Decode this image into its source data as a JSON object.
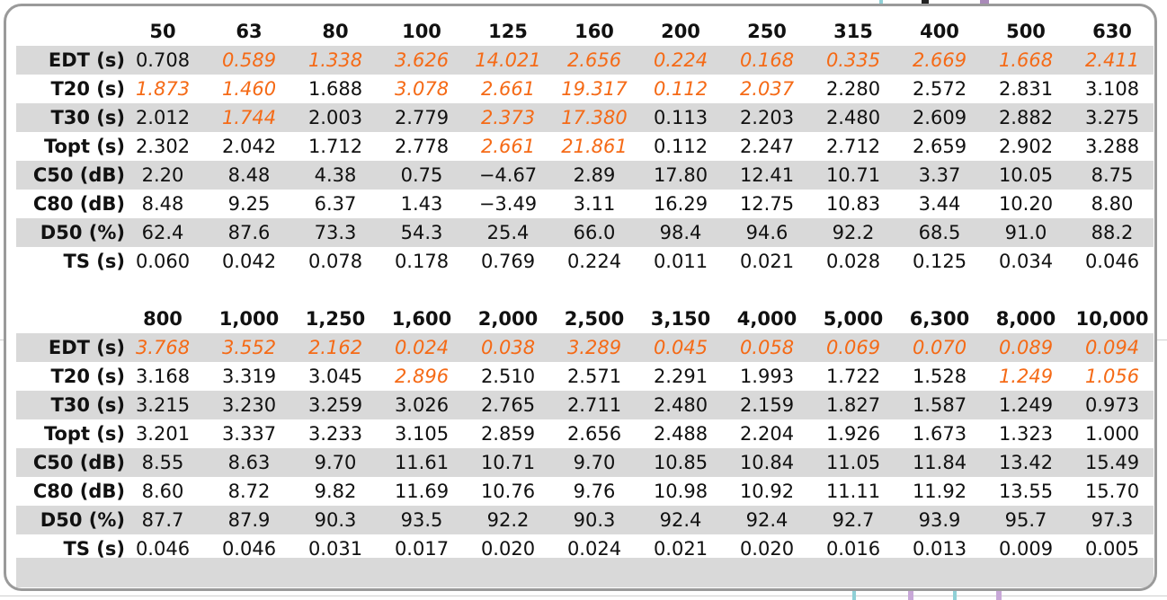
{
  "colors": {
    "highlight": "#f56a16",
    "shade": "#d9d9d9",
    "border": "#9a9a9a"
  },
  "sections": [
    {
      "headers": [
        "50",
        "63",
        "80",
        "100",
        "125",
        "160",
        "200",
        "250",
        "315",
        "400",
        "500",
        "630"
      ],
      "rows": [
        {
          "label": "EDT (s)",
          "values": [
            "0.708",
            "0.589",
            "1.338",
            "3.626",
            "14.021",
            "2.656",
            "0.224",
            "0.168",
            "0.335",
            "2.669",
            "1.668",
            "2.411"
          ],
          "highlight": [
            1,
            2,
            3,
            4,
            5,
            6,
            7,
            8,
            9,
            10,
            11
          ]
        },
        {
          "label": "T20 (s)",
          "values": [
            "1.873",
            "1.460",
            "1.688",
            "3.078",
            "2.661",
            "19.317",
            "0.112",
            "2.037",
            "2.280",
            "2.572",
            "2.831",
            "3.108"
          ],
          "highlight": [
            0,
            1,
            3,
            4,
            5,
            6,
            7
          ]
        },
        {
          "label": "T30 (s)",
          "values": [
            "2.012",
            "1.744",
            "2.003",
            "2.779",
            "2.373",
            "17.380",
            "0.113",
            "2.203",
            "2.480",
            "2.609",
            "2.882",
            "3.275"
          ],
          "highlight": [
            1,
            4,
            5
          ]
        },
        {
          "label": "Topt (s)",
          "values": [
            "2.302",
            "2.042",
            "1.712",
            "2.778",
            "2.661",
            "21.861",
            "0.112",
            "2.247",
            "2.712",
            "2.659",
            "2.902",
            "3.288"
          ],
          "highlight": [
            4,
            5
          ]
        },
        {
          "label": "C50 (dB)",
          "values": [
            "2.20",
            "8.48",
            "4.38",
            "0.75",
            "−4.67",
            "2.89",
            "17.80",
            "12.41",
            "10.71",
            "3.37",
            "10.05",
            "8.75"
          ],
          "highlight": []
        },
        {
          "label": "C80 (dB)",
          "values": [
            "8.48",
            "9.25",
            "6.37",
            "1.43",
            "−3.49",
            "3.11",
            "16.29",
            "12.75",
            "10.83",
            "3.44",
            "10.20",
            "8.80"
          ],
          "highlight": []
        },
        {
          "label": "D50 (%)",
          "values": [
            "62.4",
            "87.6",
            "73.3",
            "54.3",
            "25.4",
            "66.0",
            "98.4",
            "94.6",
            "92.2",
            "68.5",
            "91.0",
            "88.2"
          ],
          "highlight": []
        },
        {
          "label": "TS (s)",
          "values": [
            "0.060",
            "0.042",
            "0.078",
            "0.178",
            "0.769",
            "0.224",
            "0.011",
            "0.021",
            "0.028",
            "0.125",
            "0.034",
            "0.046"
          ],
          "highlight": []
        }
      ]
    },
    {
      "headers": [
        "800",
        "1,000",
        "1,250",
        "1,600",
        "2,000",
        "2,500",
        "3,150",
        "4,000",
        "5,000",
        "6,300",
        "8,000",
        "10,000"
      ],
      "rows": [
        {
          "label": "EDT (s)",
          "values": [
            "3.768",
            "3.552",
            "2.162",
            "0.024",
            "0.038",
            "3.289",
            "0.045",
            "0.058",
            "0.069",
            "0.070",
            "0.089",
            "0.094"
          ],
          "highlight": [
            0,
            1,
            2,
            3,
            4,
            5,
            6,
            7,
            8,
            9,
            10,
            11
          ]
        },
        {
          "label": "T20 (s)",
          "values": [
            "3.168",
            "3.319",
            "3.045",
            "2.896",
            "2.510",
            "2.571",
            "2.291",
            "1.993",
            "1.722",
            "1.528",
            "1.249",
            "1.056"
          ],
          "highlight": [
            3,
            10,
            11
          ]
        },
        {
          "label": "T30 (s)",
          "values": [
            "3.215",
            "3.230",
            "3.259",
            "3.026",
            "2.765",
            "2.711",
            "2.480",
            "2.159",
            "1.827",
            "1.587",
            "1.249",
            "0.973"
          ],
          "highlight": []
        },
        {
          "label": "Topt (s)",
          "values": [
            "3.201",
            "3.337",
            "3.233",
            "3.105",
            "2.859",
            "2.656",
            "2.488",
            "2.204",
            "1.926",
            "1.673",
            "1.323",
            "1.000"
          ],
          "highlight": []
        },
        {
          "label": "C50 (dB)",
          "values": [
            "8.55",
            "8.63",
            "9.70",
            "11.61",
            "10.71",
            "9.70",
            "10.85",
            "10.84",
            "11.05",
            "11.84",
            "13.42",
            "15.49"
          ],
          "highlight": []
        },
        {
          "label": "C80 (dB)",
          "values": [
            "8.60",
            "8.72",
            "9.82",
            "11.69",
            "10.76",
            "9.76",
            "10.98",
            "10.92",
            "11.11",
            "11.92",
            "13.55",
            "15.70"
          ],
          "highlight": []
        },
        {
          "label": "D50 (%)",
          "values": [
            "87.7",
            "87.9",
            "90.3",
            "93.5",
            "92.2",
            "90.3",
            "92.4",
            "92.4",
            "92.7",
            "93.9",
            "95.7",
            "97.3"
          ],
          "highlight": []
        },
        {
          "label": "TS (s)",
          "values": [
            "0.046",
            "0.046",
            "0.031",
            "0.017",
            "0.020",
            "0.024",
            "0.021",
            "0.020",
            "0.016",
            "0.013",
            "0.009",
            "0.005"
          ],
          "highlight": []
        }
      ]
    }
  ]
}
